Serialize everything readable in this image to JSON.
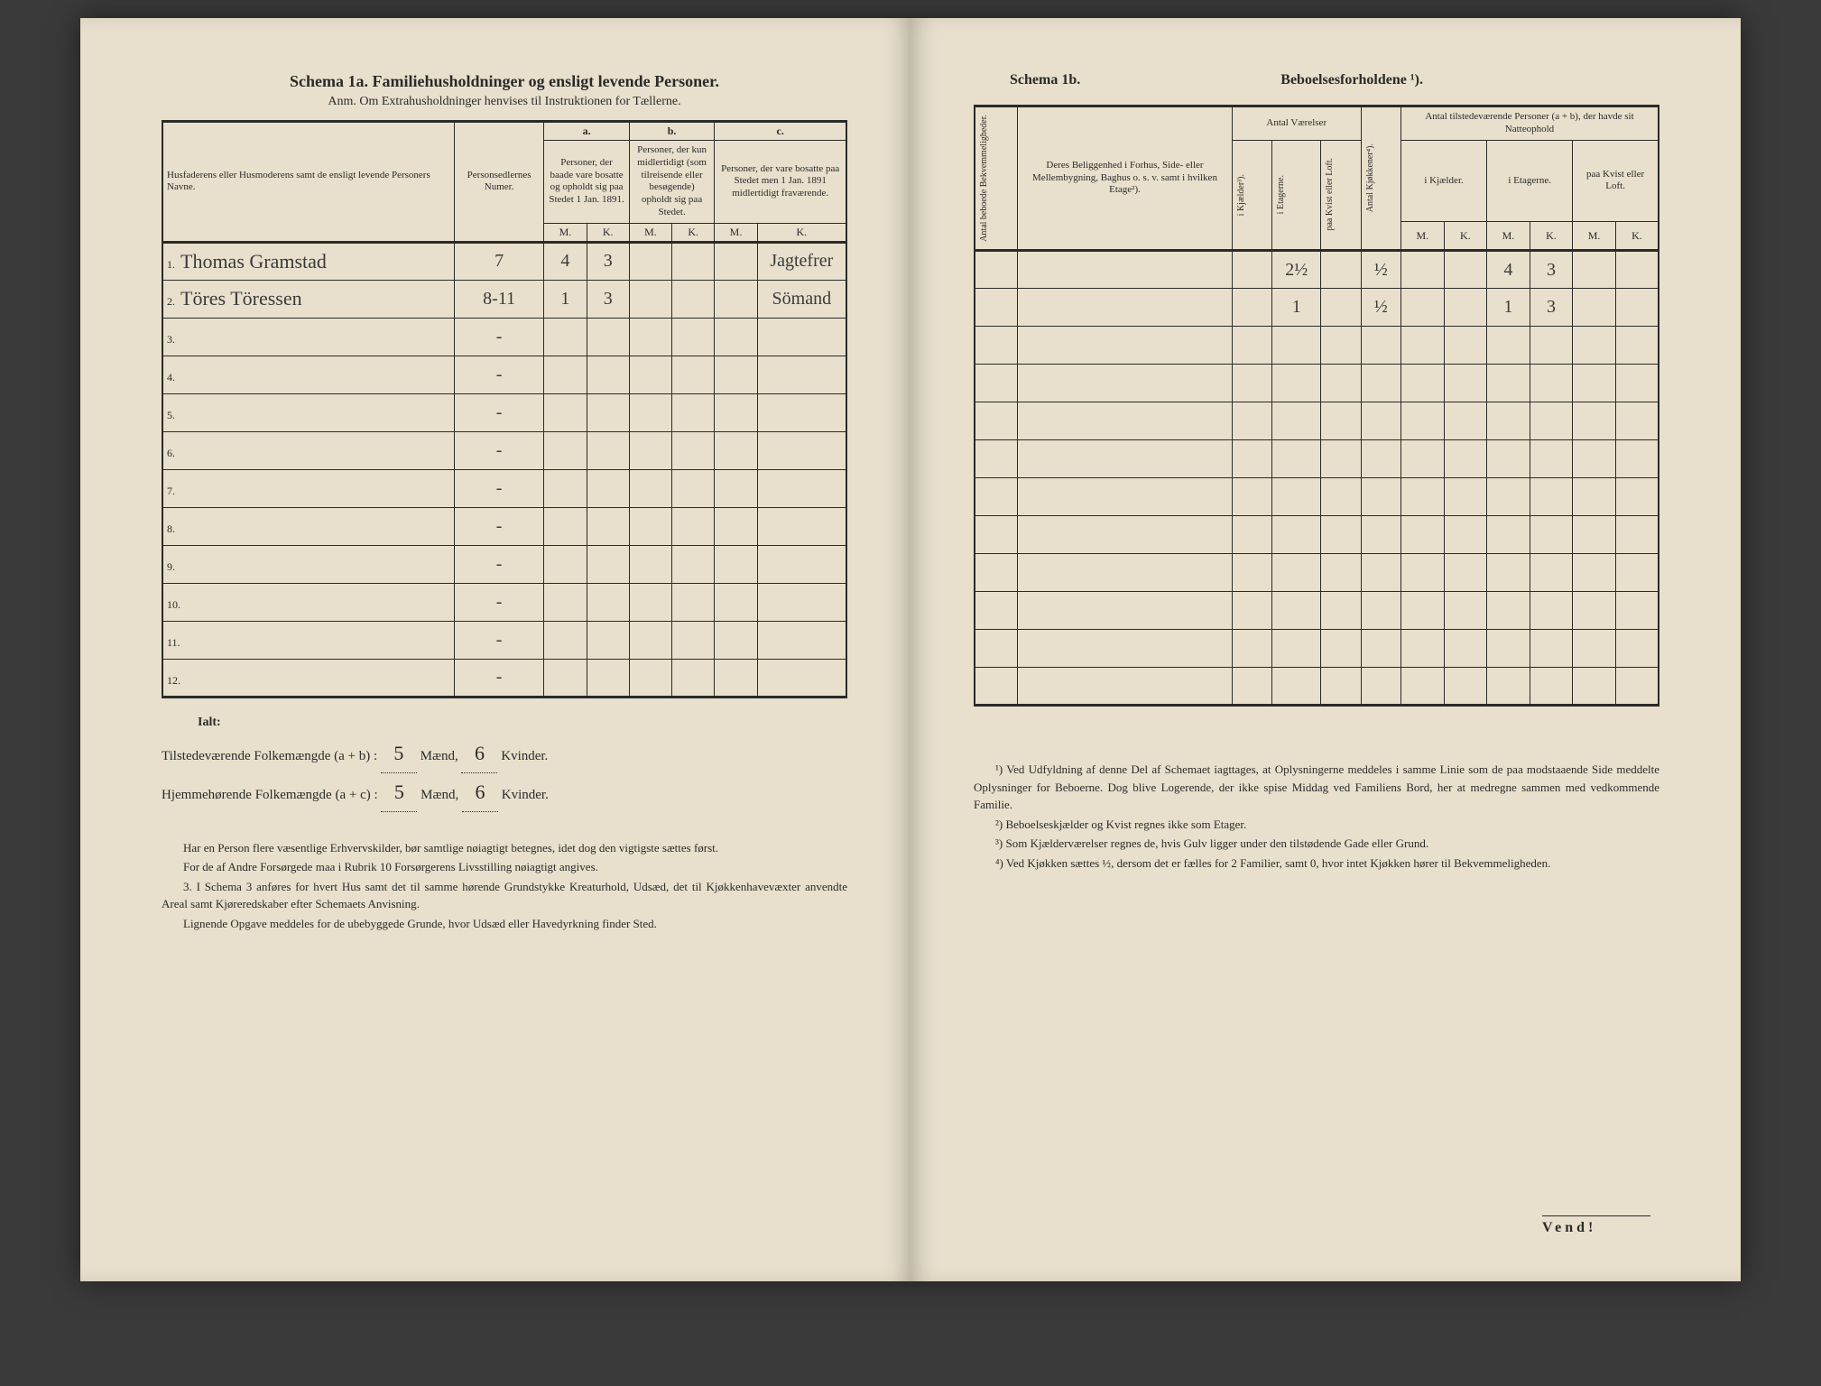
{
  "left": {
    "title": "Schema 1a.   Familiehusholdninger og ensligt levende Personer.",
    "subtitle": "Anm. Om Extrahusholdninger henvises til Instruktionen for Tællerne.",
    "headers": {
      "name": "Husfaderens eller Husmoderens samt de ensligt levende Personers Navne.",
      "num": "Personsedlernes Numer.",
      "a_label": "a.",
      "a": "Personer, der baade vare bosatte og opholdt sig paa Stedet 1 Jan. 1891.",
      "b_label": "b.",
      "b": "Personer, der kun midlertidigt (som tilreisende eller besøgende) opholdt sig paa Stedet.",
      "c_label": "c.",
      "c": "Personer, der vare bosatte paa Stedet men 1 Jan. 1891 midlertidigt fraværende.",
      "m": "M.",
      "k": "K."
    },
    "rows": [
      {
        "n": "1.",
        "name": "Thomas Gramstad",
        "num": "7",
        "am": "4",
        "ak": "3",
        "bm": "",
        "bk": "",
        "cm": "",
        "ck": "Jagtefrer"
      },
      {
        "n": "2.",
        "name": "Töres Töressen",
        "num": "8-11",
        "am": "1",
        "ak": "3",
        "bm": "",
        "bk": "",
        "cm": "",
        "ck": "Sömand"
      },
      {
        "n": "3.",
        "name": "",
        "num": "-",
        "am": "",
        "ak": "",
        "bm": "",
        "bk": "",
        "cm": "",
        "ck": ""
      },
      {
        "n": "4.",
        "name": "",
        "num": "-",
        "am": "",
        "ak": "",
        "bm": "",
        "bk": "",
        "cm": "",
        "ck": ""
      },
      {
        "n": "5.",
        "name": "",
        "num": "-",
        "am": "",
        "ak": "",
        "bm": "",
        "bk": "",
        "cm": "",
        "ck": ""
      },
      {
        "n": "6.",
        "name": "",
        "num": "-",
        "am": "",
        "ak": "",
        "bm": "",
        "bk": "",
        "cm": "",
        "ck": ""
      },
      {
        "n": "7.",
        "name": "",
        "num": "-",
        "am": "",
        "ak": "",
        "bm": "",
        "bk": "",
        "cm": "",
        "ck": ""
      },
      {
        "n": "8.",
        "name": "",
        "num": "-",
        "am": "",
        "ak": "",
        "bm": "",
        "bk": "",
        "cm": "",
        "ck": ""
      },
      {
        "n": "9.",
        "name": "",
        "num": "-",
        "am": "",
        "ak": "",
        "bm": "",
        "bk": "",
        "cm": "",
        "ck": ""
      },
      {
        "n": "10.",
        "name": "",
        "num": "-",
        "am": "",
        "ak": "",
        "bm": "",
        "bk": "",
        "cm": "",
        "ck": ""
      },
      {
        "n": "11.",
        "name": "",
        "num": "-",
        "am": "",
        "ak": "",
        "bm": "",
        "bk": "",
        "cm": "",
        "ck": ""
      },
      {
        "n": "12.",
        "name": "",
        "num": "-",
        "am": "",
        "ak": "",
        "bm": "",
        "bk": "",
        "cm": "",
        "ck": ""
      }
    ],
    "totals": {
      "ialt": "Ialt:",
      "line1_label": "Tilstedeværende Folkemængde (a + b) : ",
      "line2_label": "Hjemmehørende Folkemængde (a + c) : ",
      "maend": " Mænd, ",
      "kvinder": " Kvinder.",
      "v1m": "5",
      "v1k": "6",
      "v2m": "5",
      "v2k": "6"
    },
    "footnotes": [
      "Har en Person flere væsentlige Erhvervskilder, bør samtlige nøiagtigt betegnes, idet dog den vigtigste sættes først.",
      "For de af Andre Forsørgede maa i Rubrik 10 Forsørgerens Livsstilling nøiagtigt angives.",
      "3. I Schema 3 anføres for hvert Hus samt det til samme hørende Grundstykke Kreaturhold, Udsæd, det til Kjøkkenhavevæxter anvendte Areal samt Kjøreredskaber efter Schemaets Anvisning.",
      "Lignende Opgave meddeles for de ubebyggede Grunde, hvor Udsæd eller Havedyrkning finder Sted."
    ]
  },
  "right": {
    "schema_label": "Schema 1b.",
    "schema_title": "Beboelsesforholdene ¹).",
    "headers": {
      "bekv": "Antal beboede Bekvemmeligheder.",
      "belig": "Deres Beliggenhed i Forhus, Side- eller Mellembygning, Baghus o. s. v. samt i hvilken Etage²).",
      "antal_vaer": "Antal Værelser",
      "kjael": "i Kjælder³).",
      "etag": "i Etagerne.",
      "kvist": "paa Kvist eller Loft.",
      "kjok": "Antal Kjøkkener⁴).",
      "tilstede": "Antal tilstedeværende Personer (a + b), der havde sit Natteophold",
      "ikjael": "i Kjælder.",
      "ietag": "i Etagerne.",
      "paakvist": "paa Kvist eller Loft.",
      "m": "M.",
      "k": "K."
    },
    "rows": [
      {
        "bekv": "",
        "belig": "",
        "kj": "",
        "et": "2½",
        "kv": "",
        "kk": "½",
        "km": "",
        "kk2": "",
        "em": "4",
        "ek": "3",
        "pm": "",
        "pk": ""
      },
      {
        "bekv": "",
        "belig": "",
        "kj": "",
        "et": "1",
        "kv": "",
        "kk": "½",
        "km": "",
        "kk2": "",
        "em": "1",
        "ek": "3",
        "pm": "",
        "pk": ""
      },
      {
        "bekv": "",
        "belig": "",
        "kj": "",
        "et": "",
        "kv": "",
        "kk": "",
        "km": "",
        "kk2": "",
        "em": "",
        "ek": "",
        "pm": "",
        "pk": ""
      },
      {
        "bekv": "",
        "belig": "",
        "kj": "",
        "et": "",
        "kv": "",
        "kk": "",
        "km": "",
        "kk2": "",
        "em": "",
        "ek": "",
        "pm": "",
        "pk": ""
      },
      {
        "bekv": "",
        "belig": "",
        "kj": "",
        "et": "",
        "kv": "",
        "kk": "",
        "km": "",
        "kk2": "",
        "em": "",
        "ek": "",
        "pm": "",
        "pk": ""
      },
      {
        "bekv": "",
        "belig": "",
        "kj": "",
        "et": "",
        "kv": "",
        "kk": "",
        "km": "",
        "kk2": "",
        "em": "",
        "ek": "",
        "pm": "",
        "pk": ""
      },
      {
        "bekv": "",
        "belig": "",
        "kj": "",
        "et": "",
        "kv": "",
        "kk": "",
        "km": "",
        "kk2": "",
        "em": "",
        "ek": "",
        "pm": "",
        "pk": ""
      },
      {
        "bekv": "",
        "belig": "",
        "kj": "",
        "et": "",
        "kv": "",
        "kk": "",
        "km": "",
        "kk2": "",
        "em": "",
        "ek": "",
        "pm": "",
        "pk": ""
      },
      {
        "bekv": "",
        "belig": "",
        "kj": "",
        "et": "",
        "kv": "",
        "kk": "",
        "km": "",
        "kk2": "",
        "em": "",
        "ek": "",
        "pm": "",
        "pk": ""
      },
      {
        "bekv": "",
        "belig": "",
        "kj": "",
        "et": "",
        "kv": "",
        "kk": "",
        "km": "",
        "kk2": "",
        "em": "",
        "ek": "",
        "pm": "",
        "pk": ""
      },
      {
        "bekv": "",
        "belig": "",
        "kj": "",
        "et": "",
        "kv": "",
        "kk": "",
        "km": "",
        "kk2": "",
        "em": "",
        "ek": "",
        "pm": "",
        "pk": ""
      },
      {
        "bekv": "",
        "belig": "",
        "kj": "",
        "et": "",
        "kv": "",
        "kk": "",
        "km": "",
        "kk2": "",
        "em": "",
        "ek": "",
        "pm": "",
        "pk": ""
      }
    ],
    "footnotes": [
      "¹) Ved Udfyldning af denne Del af Schemaet iagttages, at Oplysningerne meddeles i samme Linie som de paa modstaaende Side meddelte Oplysninger for Beboerne. Dog blive Logerende, der ikke spise Middag ved Familiens Bord, her at medregne sammen med vedkommende Familie.",
      "²) Beboelseskjælder og Kvist regnes ikke som Etager.",
      "³) Som Kjælderværelser regnes de, hvis Gulv ligger under den tilstødende Gade eller Grund.",
      "⁴) Ved Kjøkken sættes ½, dersom det er fælles for 2 Familier, samt 0, hvor intet Kjøkken hører til Bekvemmeligheden."
    ],
    "vend": "Vend!"
  },
  "colors": {
    "paper": "#e8e0cc",
    "ink": "#2a2a2a",
    "hand": "#3a3a3a",
    "bg": "#3a3a3a"
  }
}
